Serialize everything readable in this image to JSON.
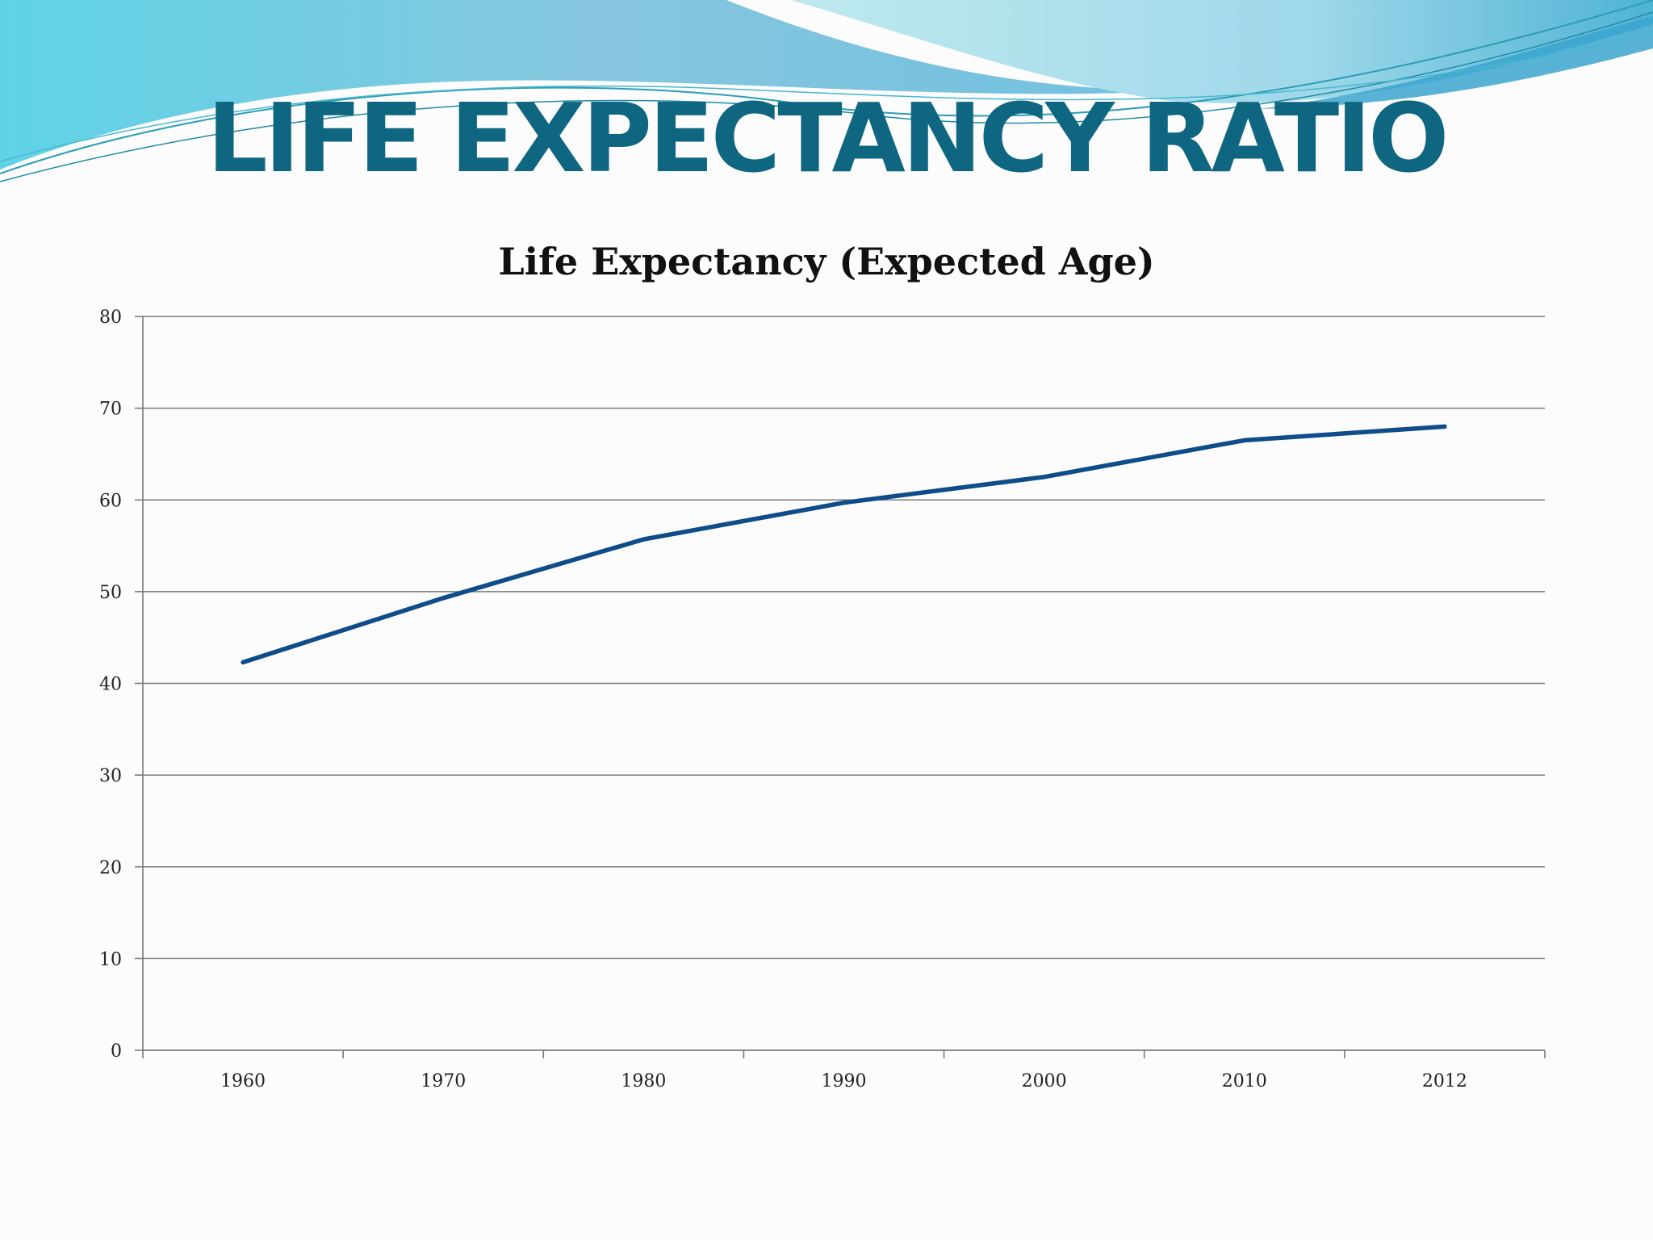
{
  "slide": {
    "title": "LIFE EXPECTANCY RATIO",
    "colors": {
      "title": "#0f6680",
      "wave_light": "#9fdbe8",
      "wave_dark": "#4fb3d4",
      "series_line": "#0e4c8a"
    }
  },
  "chart_data": {
    "type": "line",
    "title": "Life Expectancy (Expected Age)",
    "xlabel": "",
    "ylabel": "",
    "categories": [
      "1960",
      "1970",
      "1980",
      "1990",
      "2000",
      "2010",
      "2012"
    ],
    "series": [
      {
        "values": [
          42.3,
          49.3,
          55.7,
          59.7,
          62.5,
          66.5,
          68.0
        ]
      }
    ],
    "ylim": [
      0,
      80
    ],
    "yticks": [
      0,
      10,
      20,
      30,
      40,
      50,
      60,
      70,
      80
    ],
    "grid": true,
    "legend": "none"
  }
}
